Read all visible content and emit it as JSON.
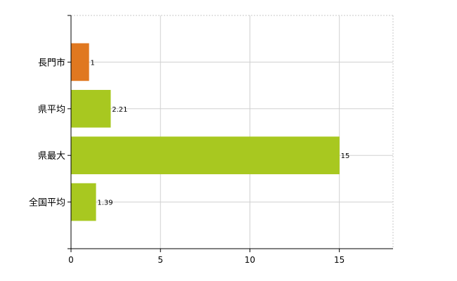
{
  "chart_data": {
    "type": "bar",
    "orientation": "horizontal",
    "categories": [
      "長門市",
      "県平均",
      "県最大",
      "全国平均"
    ],
    "values": [
      1,
      2.21,
      15,
      1.39
    ],
    "data_labels": [
      "1",
      "2.21",
      "15",
      "1.39"
    ],
    "bar_colors": [
      "#e07820",
      "#a8c820",
      "#a8c820",
      "#a8c820"
    ],
    "xlim": [
      0,
      18
    ],
    "x_ticks": [
      0,
      5,
      10,
      15
    ],
    "x_tick_labels": [
      "0",
      "5",
      "10",
      "15"
    ],
    "grid": true,
    "title": "",
    "xlabel": "",
    "ylabel": ""
  }
}
